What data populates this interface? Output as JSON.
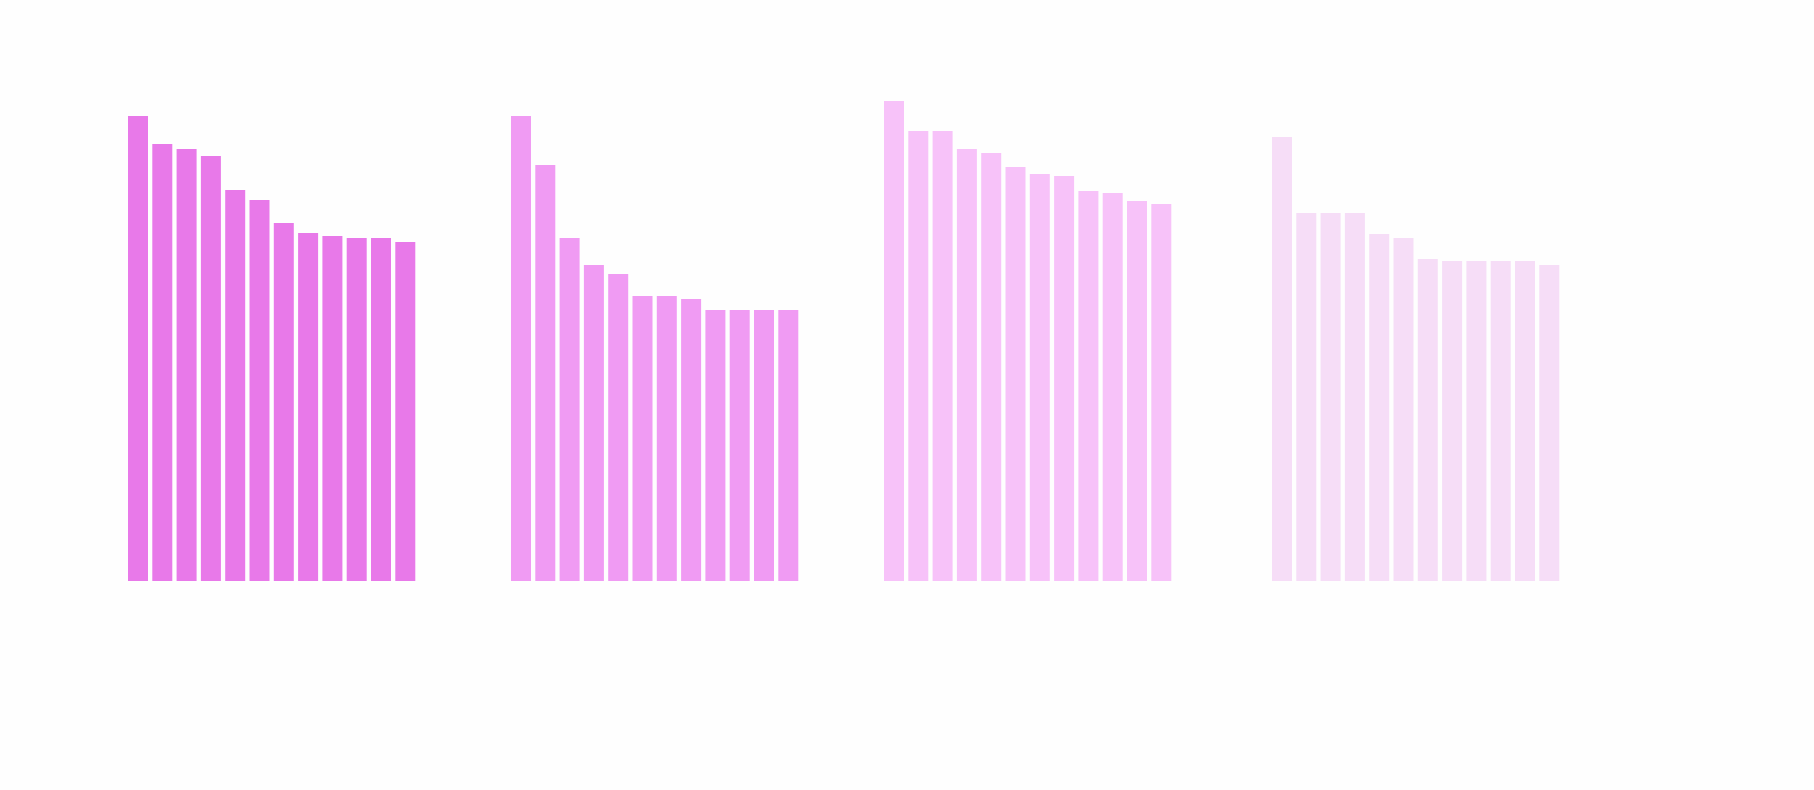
{
  "chart_data": {
    "type": "bar",
    "title": "",
    "xlabel": "",
    "ylabel": "",
    "ylim": [
      0,
      100
    ],
    "grid": false,
    "legend": "none",
    "groups": [
      {
        "color": "#e879e9",
        "values": [
          93,
          87.4,
          86.4,
          85,
          78.2,
          76.2,
          71.6,
          69.6,
          69,
          68.6,
          68.6,
          67.8
        ]
      },
      {
        "color": "#f09bf3",
        "values": [
          93,
          83.2,
          68.6,
          63.2,
          61.4,
          57,
          57,
          56.4,
          54.2,
          54.2,
          54.2,
          54.2
        ]
      },
      {
        "color": "#f7c2f9",
        "values": [
          96,
          90,
          90,
          86.4,
          85.6,
          82.8,
          81.4,
          81,
          78,
          77.6,
          76,
          75.4
        ]
      },
      {
        "color": "#f6ddf7",
        "values": [
          88.8,
          73.6,
          73.6,
          73.6,
          69.4,
          68.6,
          64.4,
          64,
          64,
          64,
          64,
          63.2
        ]
      }
    ]
  }
}
